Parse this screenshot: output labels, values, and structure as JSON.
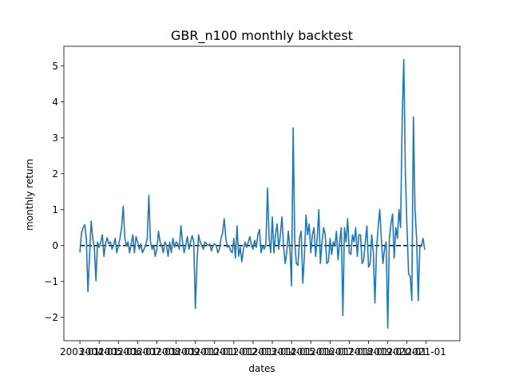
{
  "chart_data": {
    "type": "line",
    "title": "GBR_n100 monthly backtest",
    "xlabel": "dates",
    "ylabel": "monthly return",
    "x_start": "2003-01",
    "x_end": "2021-12",
    "xlim": [
      "2002-03",
      "2022-10"
    ],
    "ylim": [
      -2.65,
      5.55
    ],
    "yticks": [
      -2,
      -1,
      0,
      1,
      2,
      3,
      4,
      5
    ],
    "ytick_labels": [
      "−2",
      "−1",
      "0",
      "1",
      "2",
      "3",
      "4",
      "5"
    ],
    "xticks": [
      "2003-01",
      "2004-01",
      "2005-01",
      "2006-01",
      "2007-01",
      "2008-01",
      "2009-01",
      "2010-01",
      "2011-01",
      "2012-01",
      "2013-01",
      "2014-01",
      "2015-01",
      "2016-01",
      "2017-01",
      "2018-01",
      "2019-01",
      "2020-01",
      "2021-01"
    ],
    "xtick_labels": [
      "2003-01",
      "2004-01",
      "2005-01",
      "2006-01",
      "2007-01",
      "2008-01",
      "2009-01",
      "2010-01",
      "2011-01",
      "2012-01",
      "2013-01",
      "2014-01",
      "2015-01",
      "2016-01",
      "2017-01",
      "2018-01",
      "2019-01",
      "2020-01",
      "2021-01"
    ],
    "reference_line": {
      "y": 0,
      "style": "dashed",
      "color": "#000000"
    },
    "grid": false,
    "legend": "none",
    "series": [
      {
        "color": "#1f77b4",
        "values": [
          -0.18,
          0.35,
          0.5,
          0.58,
          0.2,
          -1.28,
          -0.3,
          0.68,
          0.2,
          -0.05,
          -0.98,
          0.1,
          -0.05,
          0.1,
          0.3,
          -0.3,
          0.05,
          0.22,
          0.05,
          0.1,
          -0.1,
          0.0,
          0.2,
          -0.2,
          0.0,
          0.2,
          0.5,
          1.1,
          0.2,
          0.0,
          0.1,
          -0.2,
          0.05,
          0.3,
          -0.2,
          0.25,
          0.1,
          -0.1,
          0.05,
          -0.2,
          -0.1,
          0.0,
          0.2,
          1.4,
          0.1,
          -0.1,
          0.0,
          -0.3,
          -0.1,
          0.4,
          0.1,
          0.0,
          -0.2,
          0.1,
          0.0,
          -0.3,
          0.1,
          -0.2,
          0.2,
          -0.05,
          0.1,
          0.05,
          -0.1,
          0.55,
          0.1,
          -0.2,
          0.0,
          0.25,
          -0.1,
          0.1,
          0.28,
          0.1,
          -1.75,
          -0.5,
          0.3,
          0.1,
          0.0,
          -0.1,
          0.1,
          0.05,
          0.0,
          0.05,
          -0.15,
          0.0,
          0.05,
          0.0,
          -0.2,
          -0.1,
          0.2,
          0.35,
          0.75,
          0.2,
          -0.05,
          0.0,
          -0.15,
          -0.2,
          0.2,
          -0.35,
          0.55,
          -0.3,
          -0.05,
          -0.45,
          -0.1,
          0.1,
          -0.05,
          0.1,
          0.25,
          0.0,
          -0.1,
          0.15,
          -0.05,
          0.3,
          0.45,
          -0.2,
          0.0,
          -0.1,
          0.05,
          1.6,
          0.2,
          -0.2,
          0.8,
          -0.2,
          0.3,
          0.6,
          -0.1,
          0.3,
          0.8,
          0.0,
          -0.5,
          -0.2,
          0.4,
          -0.1,
          -1.12,
          3.28,
          0.1,
          -0.5,
          -0.55,
          0.2,
          0.4,
          -1.05,
          -0.3,
          0.85,
          0.3,
          0.6,
          -0.2,
          0.3,
          0.5,
          -0.3,
          0.2,
          1.0,
          -0.5,
          0.1,
          0.5,
          0.3,
          -0.5,
          -0.45,
          0.2,
          -0.25,
          0.1,
          0.0,
          0.4,
          -0.4,
          0.1,
          0.5,
          -1.95,
          0.5,
          0.1,
          0.75,
          -0.2,
          -0.25,
          0.3,
          0.1,
          0.5,
          -0.3,
          0.3,
          0.3,
          -0.5,
          -0.4,
          0.1,
          0.55,
          -0.6,
          -0.5,
          0.3,
          -0.2,
          -1.6,
          -0.1,
          0.5,
          1.0,
          0.2,
          -0.5,
          -0.1,
          0.1,
          -2.3,
          0.2,
          0.6,
          0.88,
          -0.35,
          0.5,
          0.2,
          1.0,
          0.5,
          3.5,
          5.18,
          2.0,
          0.5,
          -0.8,
          -0.85,
          -1.53,
          3.58,
          1.0,
          0.2,
          -1.53,
          -0.05,
          0.0,
          0.2,
          -0.1
        ]
      }
    ]
  }
}
